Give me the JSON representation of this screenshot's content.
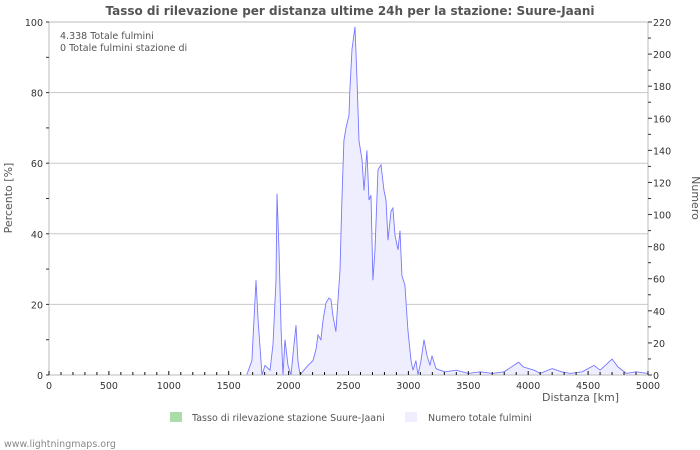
{
  "footer": "www.lightningmaps.org",
  "chart_data": {
    "type": "area",
    "title": "Tasso di rilevazione per distanza ultime 24h per la stazione: Suure-Jaani",
    "xlabel": "Distanza   [km]",
    "ylabel_left": "Percento   [%]",
    "ylabel_right": "Numero",
    "xlim": [
      0,
      5000
    ],
    "ylim_left": [
      0,
      100
    ],
    "ylim_right": [
      0,
      220
    ],
    "x_ticks": [
      0,
      500,
      1000,
      1500,
      2000,
      2500,
      3000,
      3500,
      4000,
      4500,
      5000
    ],
    "y_left_ticks": [
      0,
      20,
      40,
      60,
      80,
      100
    ],
    "y_right_ticks": [
      0,
      20,
      40,
      60,
      80,
      100,
      120,
      140,
      160,
      180,
      200,
      220
    ],
    "grid": true,
    "annotations": [
      "4.338 Totale fulmini",
      "0 Totale fulmini stazione di"
    ],
    "legend": {
      "placement": "bottom",
      "items": [
        "Tasso di rilevazione stazione Suure-Jaani",
        "Numero totale fulmini"
      ]
    },
    "colors": {
      "rate": "#aaddaa",
      "total_line": "#7777ff",
      "total_fill": "#eeeeff"
    },
    "series": [
      {
        "name": "Tasso di rilevazione stazione Suure-Jaani",
        "axis": "left",
        "points": []
      },
      {
        "name": "Numero totale fulmini",
        "axis": "right",
        "points": [
          [
            0,
            0
          ],
          [
            1650,
            0
          ],
          [
            1694,
            9
          ],
          [
            1728,
            59
          ],
          [
            1745,
            34
          ],
          [
            1778,
            0
          ],
          [
            1803,
            6
          ],
          [
            1845,
            3
          ],
          [
            1870,
            19
          ],
          [
            1895,
            59
          ],
          [
            1903,
            113
          ],
          [
            1920,
            78
          ],
          [
            1937,
            28
          ],
          [
            1953,
            0
          ],
          [
            1970,
            22
          ],
          [
            1995,
            6
          ],
          [
            2020,
            0
          ],
          [
            2045,
            19
          ],
          [
            2062,
            31
          ],
          [
            2078,
            9
          ],
          [
            2095,
            0
          ],
          [
            2128,
            3
          ],
          [
            2162,
            6
          ],
          [
            2204,
            9
          ],
          [
            2229,
            16
          ],
          [
            2245,
            25
          ],
          [
            2270,
            22
          ],
          [
            2287,
            34
          ],
          [
            2312,
            45
          ],
          [
            2337,
            48
          ],
          [
            2354,
            47
          ],
          [
            2370,
            37
          ],
          [
            2395,
            27
          ],
          [
            2412,
            47
          ],
          [
            2429,
            65
          ],
          [
            2445,
            109
          ],
          [
            2462,
            146
          ],
          [
            2479,
            154
          ],
          [
            2504,
            162
          ],
          [
            2512,
            178
          ],
          [
            2529,
            203
          ],
          [
            2554,
            217
          ],
          [
            2571,
            184
          ],
          [
            2588,
            146
          ],
          [
            2613,
            134
          ],
          [
            2629,
            115
          ],
          [
            2654,
            140
          ],
          [
            2671,
            109
          ],
          [
            2688,
            112
          ],
          [
            2704,
            59
          ],
          [
            2721,
            78
          ],
          [
            2746,
            128
          ],
          [
            2771,
            131
          ],
          [
            2796,
            115
          ],
          [
            2813,
            109
          ],
          [
            2830,
            84
          ],
          [
            2855,
            102
          ],
          [
            2871,
            104
          ],
          [
            2888,
            87
          ],
          [
            2913,
            78
          ],
          [
            2930,
            90
          ],
          [
            2946,
            62
          ],
          [
            2971,
            56
          ],
          [
            2996,
            28
          ],
          [
            3022,
            9
          ],
          [
            3038,
            3
          ],
          [
            3063,
            9
          ],
          [
            3080,
            0
          ],
          [
            3105,
            9
          ],
          [
            3130,
            22
          ],
          [
            3155,
            12
          ],
          [
            3180,
            6
          ],
          [
            3197,
            12
          ],
          [
            3230,
            4
          ],
          [
            3264,
            3
          ],
          [
            3305,
            2
          ],
          [
            3400,
            3
          ],
          [
            3500,
            1
          ],
          [
            3600,
            2
          ],
          [
            3700,
            1
          ],
          [
            3800,
            2
          ],
          [
            3880,
            6
          ],
          [
            3920,
            8
          ],
          [
            3960,
            5
          ],
          [
            4050,
            3
          ],
          [
            4100,
            1
          ],
          [
            4200,
            4
          ],
          [
            4280,
            2
          ],
          [
            4350,
            1
          ],
          [
            4450,
            2
          ],
          [
            4550,
            6
          ],
          [
            4600,
            3
          ],
          [
            4700,
            10
          ],
          [
            4750,
            5
          ],
          [
            4820,
            1
          ],
          [
            4900,
            2
          ],
          [
            5000,
            1
          ]
        ]
      }
    ]
  }
}
